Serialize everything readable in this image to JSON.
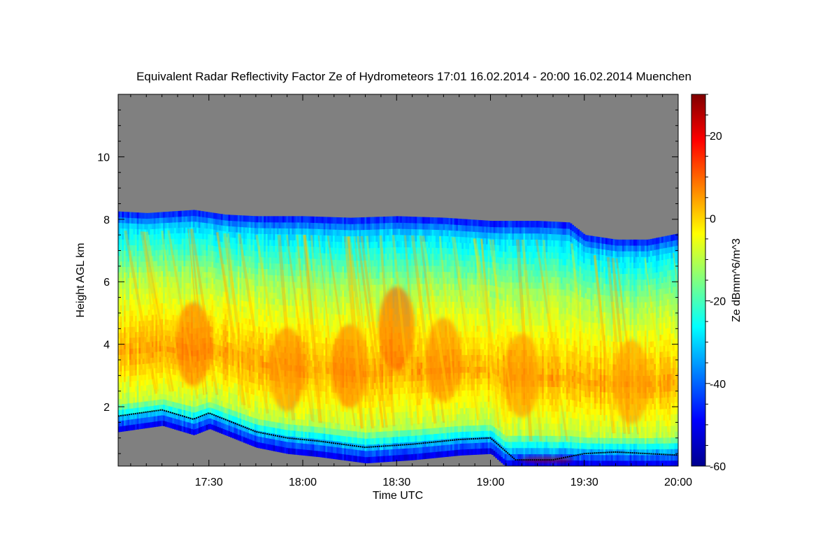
{
  "chart_data": {
    "type": "heatmap",
    "title": "Equivalent Radar Reflectivity Factor Ze of Hydrometeors   17:01 16.02.2014 - 20:00 16.02.2014 Muenchen",
    "xlabel": "Time UTC",
    "ylabel": "Height AGL km",
    "colorbar_label": "Ze dBmm^6/m^3",
    "x_range_minutes_utc": [
      1021,
      1200
    ],
    "x_ticks": [
      {
        "label": "17:30",
        "minutes": 1050
      },
      {
        "label": "18:00",
        "minutes": 1080
      },
      {
        "label": "18:30",
        "minutes": 1110
      },
      {
        "label": "19:00",
        "minutes": 1140
      },
      {
        "label": "19:30",
        "minutes": 1170
      },
      {
        "label": "20:00",
        "minutes": 1200
      }
    ],
    "ylim": [
      0.1,
      12
    ],
    "y_ticks": [
      2,
      4,
      6,
      8,
      10
    ],
    "y_tick_labels": [
      "2",
      "4",
      "6",
      "8",
      "10"
    ],
    "colorbar_range": [
      -60,
      30
    ],
    "colorbar_ticks": [
      -60,
      -40,
      -20,
      0,
      20
    ],
    "colorbar_tick_labels": [
      "-60",
      "-40",
      "-20",
      "0",
      "20"
    ],
    "no_data_color": "#808080",
    "colormap": [
      "#00008f",
      "#0000ff",
      "#0080ff",
      "#00ffff",
      "#80ff80",
      "#ffff00",
      "#ff8000",
      "#ff0000",
      "#800000"
    ],
    "cloud_top_km": [
      [
        1021,
        8.25
      ],
      [
        1030,
        8.2
      ],
      [
        1045,
        8.3
      ],
      [
        1055,
        8.15
      ],
      [
        1065,
        8.1
      ],
      [
        1080,
        8.1
      ],
      [
        1095,
        8.05
      ],
      [
        1110,
        8.1
      ],
      [
        1125,
        8.05
      ],
      [
        1140,
        7.95
      ],
      [
        1155,
        7.95
      ],
      [
        1165,
        7.9
      ],
      [
        1170,
        7.5
      ],
      [
        1180,
        7.35
      ],
      [
        1190,
        7.35
      ],
      [
        1200,
        7.55
      ]
    ],
    "cloud_base_km": [
      [
        1021,
        1.7
      ],
      [
        1035,
        1.9
      ],
      [
        1045,
        1.6
      ],
      [
        1050,
        1.8
      ],
      [
        1055,
        1.6
      ],
      [
        1065,
        1.2
      ],
      [
        1075,
        1.0
      ],
      [
        1085,
        0.9
      ],
      [
        1100,
        0.7
      ],
      [
        1115,
        0.8
      ],
      [
        1130,
        0.95
      ],
      [
        1140,
        1.0
      ],
      [
        1148,
        0.3
      ],
      [
        1160,
        0.3
      ],
      [
        1170,
        0.5
      ],
      [
        1180,
        0.55
      ],
      [
        1190,
        0.5
      ],
      [
        1200,
        0.45
      ]
    ],
    "reflectivity_cores_dbz": [
      {
        "time_min": 1045,
        "height_km": 4.0,
        "ze": 10
      },
      {
        "time_min": 1075,
        "height_km": 3.2,
        "ze": 8
      },
      {
        "time_min": 1095,
        "height_km": 3.3,
        "ze": 9
      },
      {
        "time_min": 1110,
        "height_km": 4.5,
        "ze": 12
      },
      {
        "time_min": 1125,
        "height_km": 3.5,
        "ze": 8
      },
      {
        "time_min": 1150,
        "height_km": 3.0,
        "ze": 7
      },
      {
        "time_min": 1158,
        "height_km": 0.3,
        "ze": 25
      },
      {
        "time_min": 1185,
        "height_km": 2.8,
        "ze": 6
      }
    ]
  }
}
